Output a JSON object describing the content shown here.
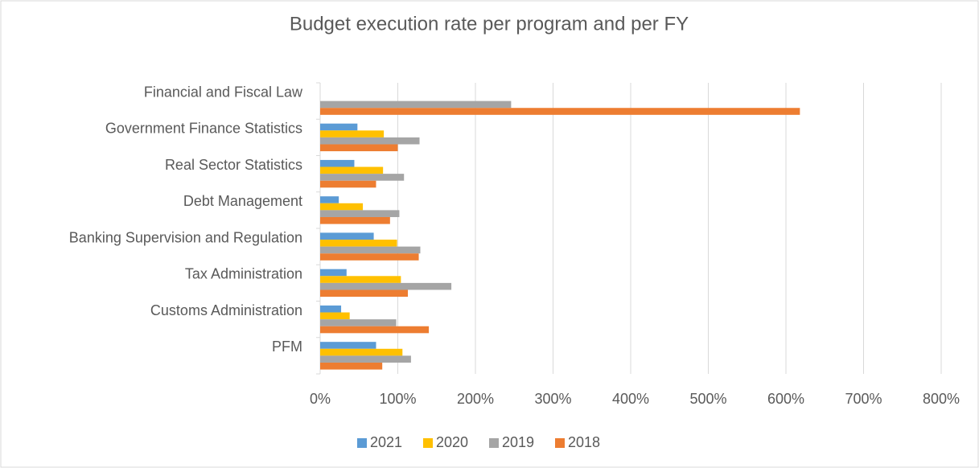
{
  "chart_data": {
    "type": "hbar",
    "title": "Budget execution rate per program and per FY",
    "categories": [
      "Financial and Fiscal Law",
      "Government Finance Statistics",
      "Real Sector Statistics",
      "Debt Management",
      "Banking Supervision and Regulation",
      "Tax Administration",
      "Customs Administration",
      "PFM"
    ],
    "series": [
      {
        "name": "2021",
        "color": "#5b9bd5",
        "values": [
          0,
          48,
          44,
          24,
          69,
          34,
          27,
          72
        ]
      },
      {
        "name": "2020",
        "color": "#ffc000",
        "values": [
          0,
          82,
          81,
          55,
          99,
          104,
          38,
          106
        ]
      },
      {
        "name": "2019",
        "color": "#a5a5a5",
        "values": [
          246,
          128,
          108,
          102,
          129,
          169,
          98,
          117
        ]
      },
      {
        "name": "2018",
        "color": "#ed7d31",
        "values": [
          618,
          100,
          72,
          90,
          127,
          113,
          140,
          80
        ]
      }
    ],
    "xlim": [
      0,
      800
    ],
    "xticks": [
      {
        "value": 0,
        "label": "0%"
      },
      {
        "value": 100,
        "label": "100%"
      },
      {
        "value": 200,
        "label": "200%"
      },
      {
        "value": 300,
        "label": "300%"
      },
      {
        "value": 400,
        "label": "400%"
      },
      {
        "value": 500,
        "label": "500%"
      },
      {
        "value": 600,
        "label": "600%"
      },
      {
        "value": 700,
        "label": "700%"
      },
      {
        "value": 800,
        "label": "800%"
      }
    ],
    "grid": true,
    "legend": "bottom"
  }
}
